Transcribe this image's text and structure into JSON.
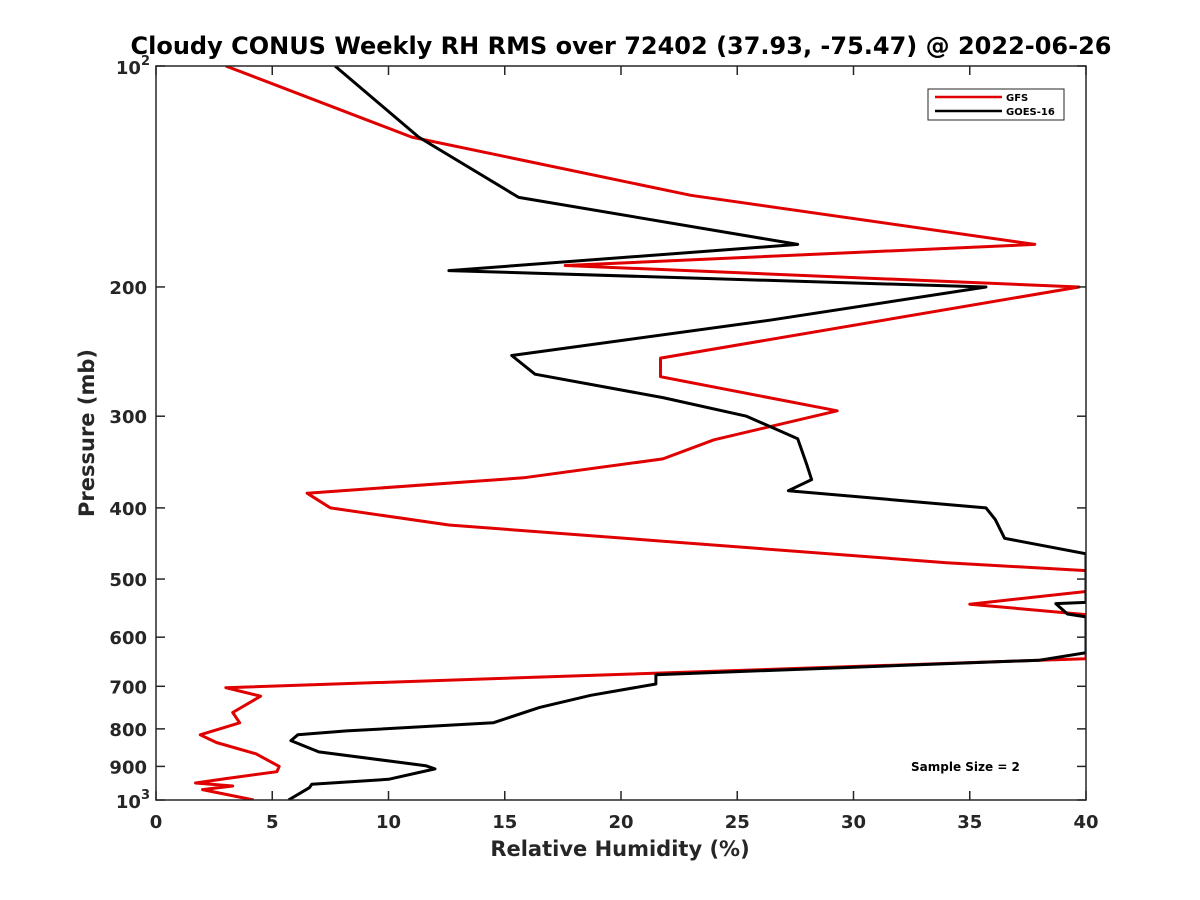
{
  "chart_data": {
    "type": "line",
    "title": "Cloudy CONUS Weekly RH RMS over 72402 (37.93, -75.47) @ 2022-06-26",
    "xlabel": "Relative Humidity (%)",
    "ylabel": "Pressure (mb)",
    "xlim": [
      0,
      40
    ],
    "ylim": [
      100,
      1000
    ],
    "y_scale": "log",
    "y_reversed": true,
    "x_ticks": [
      0,
      5,
      10,
      15,
      20,
      25,
      30,
      35,
      40
    ],
    "x_tick_labels": [
      "0",
      "5",
      "10",
      "15",
      "20",
      "25",
      "30",
      "35",
      "40"
    ],
    "y_ticks": [
      {
        "value": 100,
        "label": "10",
        "sup": "2"
      },
      {
        "value": 200,
        "label": "200"
      },
      {
        "value": 300,
        "label": "300"
      },
      {
        "value": 400,
        "label": "400"
      },
      {
        "value": 500,
        "label": "500"
      },
      {
        "value": 600,
        "label": "600"
      },
      {
        "value": 700,
        "label": "700"
      },
      {
        "value": 800,
        "label": "800"
      },
      {
        "value": 900,
        "label": "900"
      },
      {
        "value": 1000,
        "label": "10",
        "sup": "3"
      }
    ],
    "grid": false,
    "legend_position": "top-right",
    "annotation": "Sample Size = 2",
    "series": [
      {
        "name": "GFS",
        "color": "#e00000",
        "points": [
          [
            3.0,
            100
          ],
          [
            11.0,
            125
          ],
          [
            23.0,
            150
          ],
          [
            37.8,
            175
          ],
          [
            17.6,
            187
          ],
          [
            39.7,
            200
          ],
          [
            21.7,
            250
          ],
          [
            21.7,
            265
          ],
          [
            29.3,
            295
          ],
          [
            24.0,
            323
          ],
          [
            21.8,
            343
          ],
          [
            15.8,
            364
          ],
          [
            6.5,
            382
          ],
          [
            7.5,
            400
          ],
          [
            12.6,
            422
          ],
          [
            34.0,
            475
          ],
          [
            40.0,
            487
          ],
          [
            40.0,
            520
          ],
          [
            35.0,
            541
          ],
          [
            40.0,
            559
          ],
          [
            40.0,
            642
          ],
          [
            3.0,
            703
          ],
          [
            4.5,
            722
          ],
          [
            3.3,
            760
          ],
          [
            3.6,
            785
          ],
          [
            1.9,
            815
          ],
          [
            2.6,
            835
          ],
          [
            4.3,
            865
          ],
          [
            5.3,
            900
          ],
          [
            5.2,
            915
          ],
          [
            3.0,
            935
          ],
          [
            1.7,
            948
          ],
          [
            3.3,
            957
          ],
          [
            2.0,
            968
          ],
          [
            4.2,
            1000
          ]
        ]
      },
      {
        "name": "GOES-16",
        "color": "#000000",
        "points": [
          [
            7.7,
            100
          ],
          [
            11.3,
            125
          ],
          [
            15.6,
            151
          ],
          [
            27.6,
            175
          ],
          [
            12.6,
            190
          ],
          [
            35.7,
            200
          ],
          [
            26.4,
            222
          ],
          [
            15.3,
            248
          ],
          [
            16.3,
            263
          ],
          [
            21.8,
            283
          ],
          [
            25.4,
            300
          ],
          [
            27.6,
            322
          ],
          [
            28.0,
            350
          ],
          [
            28.2,
            366
          ],
          [
            27.2,
            379
          ],
          [
            35.7,
            400
          ],
          [
            36.1,
            415
          ],
          [
            36.5,
            440
          ],
          [
            40.0,
            462
          ],
          [
            40.0,
            538
          ],
          [
            38.7,
            540
          ],
          [
            39.2,
            558
          ],
          [
            40.0,
            563
          ],
          [
            40.0,
            630
          ],
          [
            38.0,
            645
          ],
          [
            21.5,
            675
          ],
          [
            21.5,
            695
          ],
          [
            18.7,
            720
          ],
          [
            16.5,
            748
          ],
          [
            14.5,
            785
          ],
          [
            8.2,
            805
          ],
          [
            6.1,
            815
          ],
          [
            5.8,
            830
          ],
          [
            7.0,
            860
          ],
          [
            11.6,
            898
          ],
          [
            12.0,
            907
          ],
          [
            10.0,
            937
          ],
          [
            6.7,
            952
          ],
          [
            6.6,
            962
          ],
          [
            5.7,
            1000
          ]
        ]
      }
    ]
  }
}
